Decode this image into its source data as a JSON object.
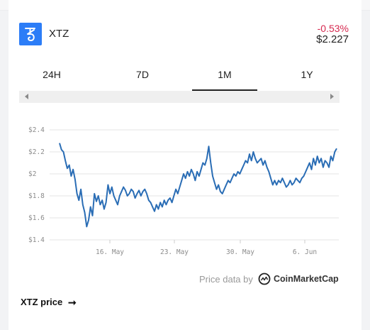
{
  "coin": {
    "symbol": "XTZ",
    "change": "-0.53%",
    "price": "$2.227",
    "logo_icon": "tezos-icon",
    "colors": {
      "logo_bg": "#2c7df7",
      "negative": "#d6284f",
      "line": "#2a6db5"
    }
  },
  "tabs": [
    {
      "label": "24H",
      "active": false
    },
    {
      "label": "7D",
      "active": false
    },
    {
      "label": "1M",
      "active": true
    },
    {
      "label": "1Y",
      "active": false
    }
  ],
  "footer": {
    "credit": "Price data by",
    "provider": "CoinMarketCap",
    "link": "XTZ price"
  },
  "chart_data": {
    "type": "line",
    "title": "",
    "xlabel": "",
    "ylabel": "",
    "ylim": [
      1.4,
      2.4
    ],
    "yticks": [
      "$1.4",
      "$1.6",
      "$1.8",
      "$2",
      "$2.2",
      "$2.4"
    ],
    "xticks": [
      "16. May",
      "23. May",
      "30. May",
      "6. Jun"
    ],
    "grid": true,
    "series": [
      {
        "values": [
          2.28,
          2.22,
          2.2,
          2.12,
          2.05,
          2.08,
          1.98,
          2.04,
          1.95,
          1.82,
          1.76,
          1.86,
          1.72,
          1.65,
          1.52,
          1.58,
          1.7,
          1.62,
          1.82,
          1.75,
          1.8,
          1.72,
          1.76,
          1.68,
          1.74,
          1.9,
          1.82,
          1.88,
          1.8,
          1.76,
          1.72,
          1.8,
          1.84,
          1.88,
          1.85,
          1.8,
          1.82,
          1.86,
          1.84,
          1.78,
          1.82,
          1.85,
          1.8,
          1.84,
          1.86,
          1.82,
          1.76,
          1.74,
          1.7,
          1.66,
          1.72,
          1.68,
          1.74,
          1.7,
          1.76,
          1.72,
          1.76,
          1.78,
          1.74,
          1.8,
          1.86,
          1.82,
          1.88,
          1.94,
          2.0,
          1.96,
          2.02,
          1.98,
          2.04,
          2.0,
          1.94,
          2.02,
          1.98,
          2.04,
          2.1,
          2.08,
          2.14,
          2.25,
          2.1,
          1.98,
          1.92,
          1.86,
          1.9,
          1.84,
          1.82,
          1.86,
          1.9,
          1.94,
          1.92,
          1.96,
          2.0,
          1.98,
          2.02,
          2.0,
          2.04,
          2.08,
          2.12,
          2.1,
          2.18,
          2.12,
          2.2,
          2.14,
          2.1,
          2.12,
          2.14,
          2.08,
          2.12,
          2.06,
          2.02,
          1.96,
          1.9,
          1.94,
          1.9,
          1.94,
          1.92,
          1.96,
          1.92,
          1.88,
          1.9,
          1.94,
          1.9,
          1.92,
          1.96,
          1.94,
          1.92,
          1.96,
          1.98,
          2.02,
          2.06,
          2.1,
          2.04,
          2.14,
          2.08,
          2.16,
          2.1,
          2.14,
          2.06,
          2.12,
          2.1,
          2.06,
          2.16,
          2.12,
          2.2,
          2.23
        ]
      }
    ]
  }
}
